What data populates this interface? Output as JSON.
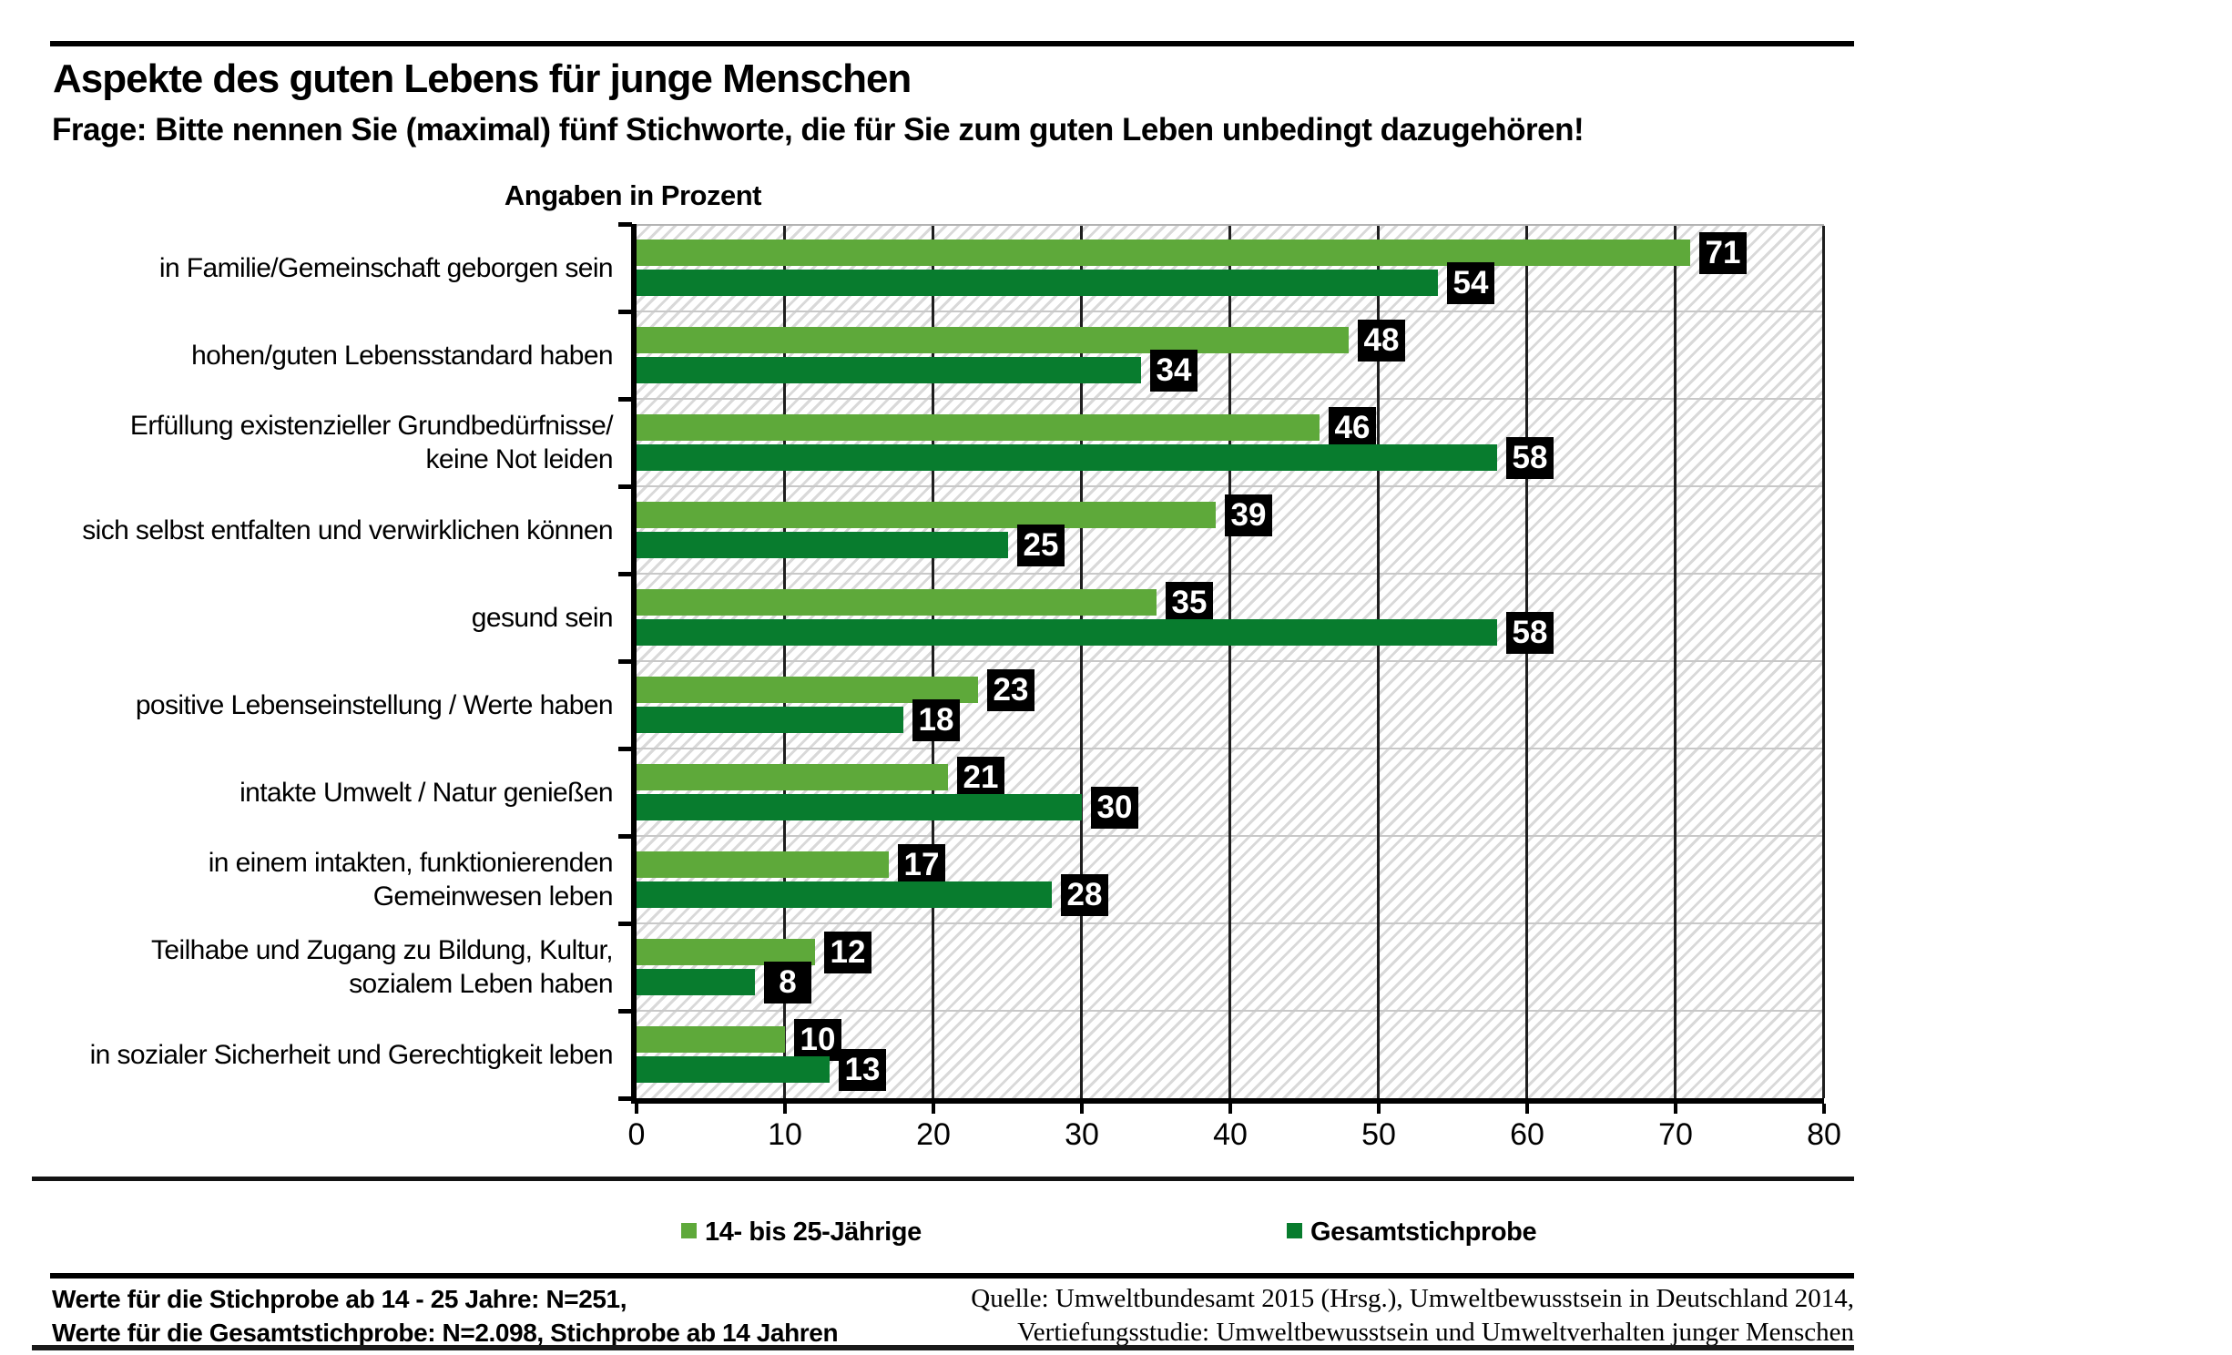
{
  "header": {
    "title": "Aspekte des guten Lebens für junge Menschen",
    "question": "Frage: Bitte nennen Sie (maximal) fünf Stichworte, die für Sie zum guten Leben unbedingt dazugehören!"
  },
  "chart_data": {
    "type": "bar",
    "orientation": "horizontal",
    "units_label": "Angaben in Prozent",
    "categories": [
      "in Familie/Gemeinschaft geborgen sein",
      "hohen/guten Lebensstandard haben",
      "Erfüllung existenzieller Grundbedürfnisse/\nkeine Not leiden",
      "sich selbst entfalten und verwirklichen können",
      "gesund sein",
      "positive Lebenseinstellung / Werte haben",
      "intakte Umwelt / Natur genießen",
      "in einem intakten, funktionierenden\nGemeinwesen leben",
      "Teilhabe und Zugang zu Bildung, Kultur,\nsozialem Leben haben",
      "in sozialer Sicherheit und Gerechtigkeit leben"
    ],
    "series": [
      {
        "name": "14- bis 25-Jährige",
        "color": "#5ea93a",
        "values": [
          71,
          48,
          46,
          39,
          35,
          23,
          21,
          17,
          12,
          10
        ]
      },
      {
        "name": "Gesamtstichprobe",
        "color": "#087c2e",
        "values": [
          54,
          34,
          58,
          25,
          58,
          18,
          30,
          28,
          8,
          13
        ]
      }
    ],
    "xlim": [
      0,
      80
    ],
    "xticks": [
      0,
      10,
      20,
      30,
      40,
      50,
      60,
      70,
      80
    ],
    "value_label_style": {
      "background": "#000000",
      "text": "#ffffff"
    },
    "plot_background": "white with light gray diagonal hatching",
    "grid": {
      "vertical": true,
      "horizontal_band_separators": true
    },
    "legend_position": "bottom"
  },
  "legend": {
    "items": [
      {
        "label": "14- bis 25-Jährige",
        "color": "#5ea93a"
      },
      {
        "label": "Gesamtstichprobe",
        "color": "#087c2e"
      }
    ]
  },
  "footer": {
    "left_lines": [
      "Werte für die Stichprobe ab 14 - 25 Jahre: N=251,",
      "Werte für die Gesamtstichprobe: N=2.098, Stichprobe ab 14 Jahren"
    ],
    "source_lines": [
      "Quelle: Umweltbundesamt 2015 (Hrsg.), Umweltbewusstsein in Deutschland 2014,",
      "Vertiefungsstudie: Umweltbewusstsein und Umweltverhalten junger Menschen"
    ]
  }
}
